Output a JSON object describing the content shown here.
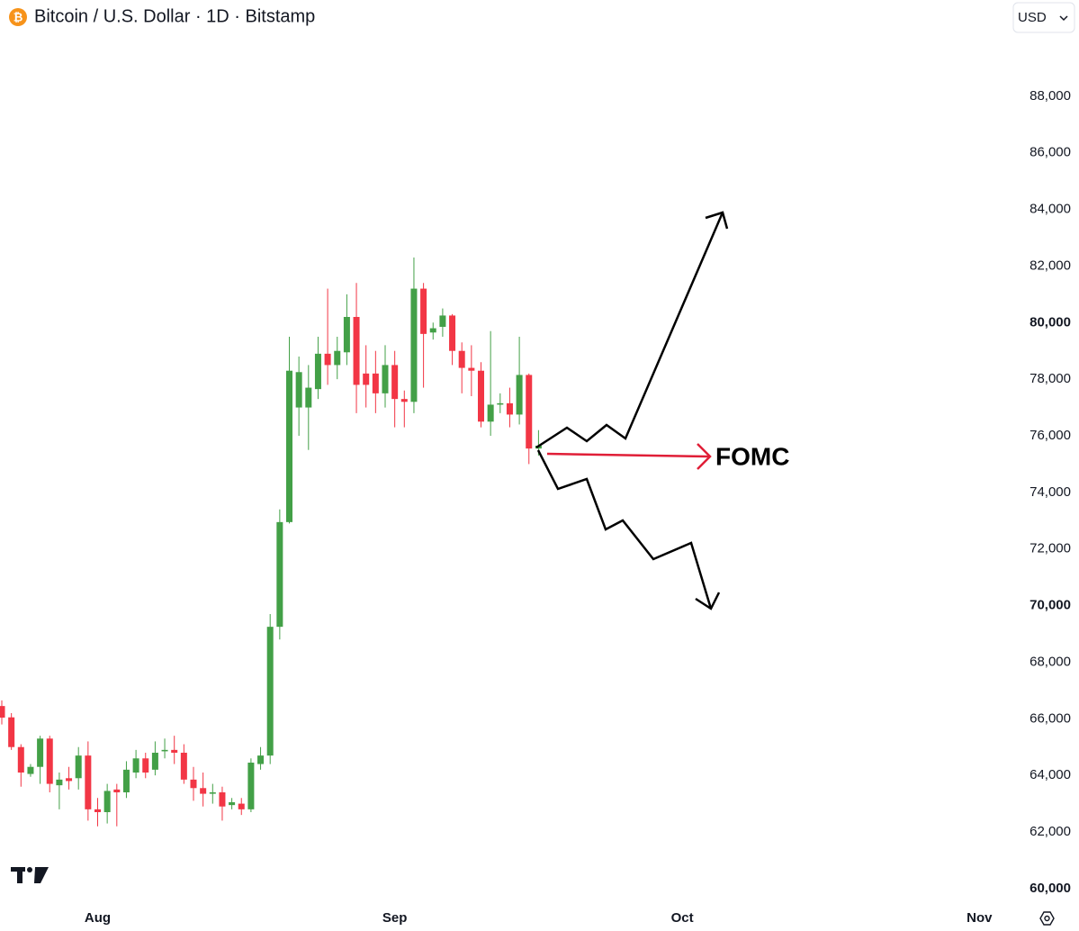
{
  "header": {
    "title": "Bitcoin / U.S. Dollar · 1D · Bitstamp",
    "currency": "USD"
  },
  "chart_data": {
    "type": "candlestick",
    "annotation": "FOMC",
    "up_color": "#43a047",
    "down_color": "#f23645",
    "categories": [
      null,
      null,
      null,
      null,
      null,
      null,
      null,
      null,
      null,
      null,
      "Aug",
      null,
      null,
      null,
      null,
      null,
      null,
      null,
      null,
      null,
      null,
      null,
      null,
      null,
      null,
      null,
      null,
      null,
      null,
      null,
      null,
      null,
      null,
      null,
      null,
      null,
      null,
      null,
      null,
      null,
      null,
      "Sep",
      null,
      null,
      null,
      null,
      null,
      null,
      null,
      null,
      null,
      null,
      null,
      null,
      null,
      null,
      null,
      null,
      null,
      null,
      null,
      null,
      null,
      null,
      null,
      null,
      null,
      null,
      null,
      null,
      null,
      "Oct",
      null,
      null,
      null,
      null,
      null,
      null,
      null,
      null,
      null,
      null,
      null,
      null,
      null,
      null,
      null,
      null,
      null,
      null,
      null,
      null,
      null,
      null,
      null,
      null,
      null,
      null,
      null,
      null,
      null,
      null,
      "Nov"
    ],
    "open": [
      66450,
      66050,
      65000,
      64050,
      64300,
      65300,
      63650,
      63900,
      63900,
      64700,
      62800,
      62700,
      63500,
      63400,
      64100,
      64600,
      64200,
      64850,
      64900,
      64800,
      63850,
      63550,
      63350,
      63400,
      62950,
      63000,
      62800,
      64400,
      64700,
      69250,
      72950,
      77000,
      77000,
      77650,
      78900,
      78500,
      78950,
      80200,
      78200,
      78200,
      77500,
      78500,
      77300,
      77200,
      81200,
      79650,
      79850,
      80250,
      79000,
      78400,
      78300,
      76500,
      77100,
      77150,
      76750,
      78150,
      75550,
      null,
      null,
      null,
      null,
      null,
      null,
      null,
      null,
      null,
      null,
      null,
      null,
      null,
      null,
      null,
      null,
      null,
      null,
      null,
      null,
      null,
      null,
      null,
      null,
      null,
      null,
      null,
      null,
      null,
      null,
      null,
      null,
      null,
      null,
      null,
      null,
      null,
      null,
      null,
      null,
      null,
      null,
      null,
      null,
      null,
      null
    ],
    "high": [
      66650,
      66200,
      65100,
      64400,
      65400,
      65400,
      64100,
      64300,
      65000,
      65200,
      63200,
      63700,
      63700,
      64500,
      64900,
      64800,
      65200,
      65300,
      65400,
      65100,
      64300,
      64100,
      63700,
      63600,
      63200,
      63200,
      64600,
      65000,
      69700,
      73400,
      79500,
      78800,
      78500,
      79500,
      81200,
      79500,
      81000,
      81400,
      79200,
      79000,
      79200,
      79000,
      77600,
      82300,
      81400,
      80000,
      80500,
      80300,
      79300,
      79200,
      78600,
      79700,
      77500,
      77700,
      79500,
      78200,
      76200,
      null,
      null,
      null,
      null,
      null,
      null,
      null,
      null,
      null,
      null,
      null,
      null,
      null,
      null,
      null,
      null,
      null,
      null,
      null,
      null,
      null,
      null,
      null,
      null,
      null,
      null,
      null,
      null,
      null,
      null,
      null,
      null,
      null,
      null,
      null,
      null,
      null,
      null,
      null,
      null,
      null,
      null,
      null,
      null,
      null,
      null
    ],
    "low": [
      65800,
      64900,
      63600,
      63950,
      63700,
      63400,
      62800,
      63500,
      63500,
      62400,
      62200,
      62300,
      62200,
      63200,
      63900,
      63900,
      64000,
      64600,
      64400,
      63700,
      63100,
      62900,
      63000,
      62400,
      62800,
      62600,
      62700,
      64200,
      64400,
      68800,
      72900,
      76000,
      75500,
      77300,
      77800,
      78000,
      78500,
      76800,
      77000,
      76800,
      77000,
      76300,
      76300,
      76800,
      77700,
      79400,
      79500,
      78500,
      77500,
      77400,
      76300,
      76000,
      76800,
      76300,
      76400,
      75000,
      75300,
      null,
      null,
      null,
      null,
      null,
      null,
      null,
      null,
      null,
      null,
      null,
      null,
      null,
      null,
      null,
      null,
      null,
      null,
      null,
      null,
      null,
      null,
      null,
      null,
      null,
      null,
      null,
      null,
      null,
      null,
      null,
      null,
      null,
      null,
      null,
      null,
      null,
      null,
      null,
      null,
      null,
      null,
      null,
      null,
      null,
      null
    ],
    "close": [
      66040,
      65000,
      64100,
      64300,
      65300,
      63700,
      63850,
      63800,
      64700,
      62800,
      62700,
      63450,
      63400,
      64200,
      64600,
      64100,
      64800,
      64900,
      64800,
      63850,
      63550,
      63350,
      63400,
      62900,
      63050,
      62800,
      64450,
      64700,
      69250,
      72950,
      78300,
      78250,
      77700,
      78900,
      78500,
      79000,
      80200,
      77800,
      77800,
      77500,
      78500,
      77300,
      77200,
      81200,
      79600,
      79800,
      80250,
      79000,
      78400,
      78300,
      76500,
      77100,
      77150,
      76750,
      78150,
      75550,
      75650,
      null,
      null,
      null,
      null,
      null,
      null,
      null,
      null,
      null,
      null,
      null,
      null,
      null,
      null,
      null,
      null,
      null,
      null,
      null,
      null,
      null,
      null,
      null,
      null,
      null,
      null,
      null,
      null,
      null,
      null,
      null,
      null,
      null,
      null,
      null,
      null,
      null,
      null,
      null,
      null,
      null,
      null,
      null,
      null,
      null,
      null
    ],
    "ylim": [
      58500,
      91400
    ],
    "yticks": [
      {
        "value": 60000,
        "label": "60,000"
      },
      {
        "value": 62000,
        "label": "62,000"
      },
      {
        "value": 64000,
        "label": "64,000"
      },
      {
        "value": 66000,
        "label": "66,000"
      },
      {
        "value": 68000,
        "label": "68,000"
      },
      {
        "value": 70000,
        "label": "70,000"
      },
      {
        "value": 72000,
        "label": "72,000"
      },
      {
        "value": 74000,
        "label": "74,000"
      },
      {
        "value": 76000,
        "label": "76,000"
      },
      {
        "value": 78000,
        "label": "78,000"
      },
      {
        "value": 80000,
        "label": "80,000"
      },
      {
        "value": 82000,
        "label": "82,000"
      },
      {
        "value": 84000,
        "label": "84,000"
      },
      {
        "value": 86000,
        "label": "86,000"
      },
      {
        "value": 88000,
        "label": "88,000"
      }
    ],
    "grid": false
  }
}
